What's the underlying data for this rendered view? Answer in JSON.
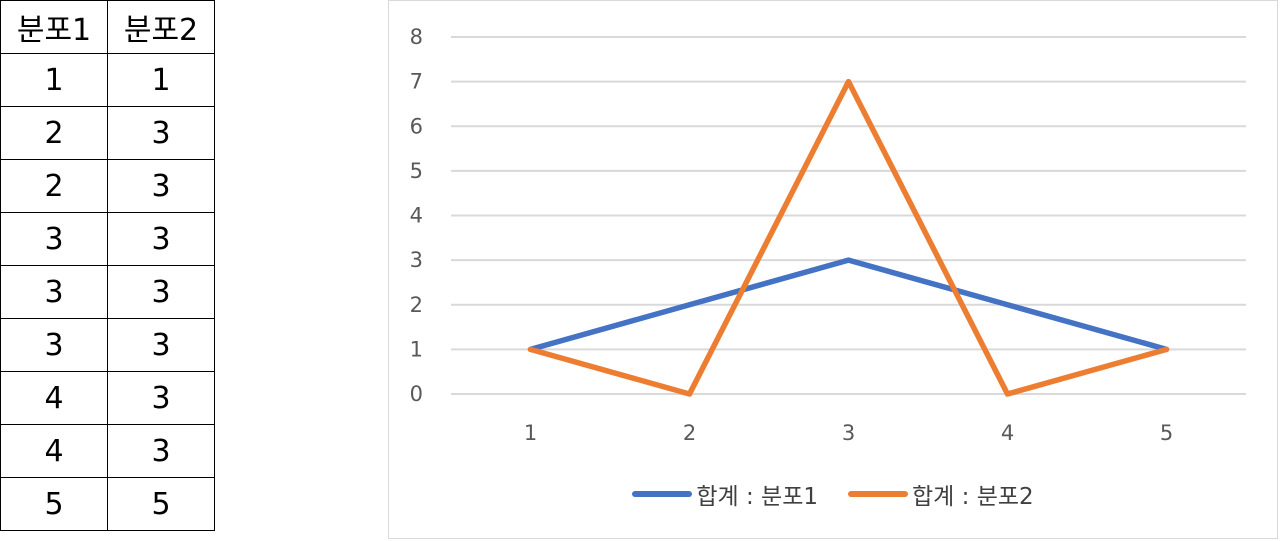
{
  "table": {
    "headers": [
      "분포1",
      "분포2"
    ],
    "rows": [
      [
        "1",
        "1"
      ],
      [
        "2",
        "3"
      ],
      [
        "2",
        "3"
      ],
      [
        "3",
        "3"
      ],
      [
        "3",
        "3"
      ],
      [
        "3",
        "3"
      ],
      [
        "4",
        "3"
      ],
      [
        "4",
        "3"
      ],
      [
        "5",
        "5"
      ]
    ]
  },
  "chart_data": {
    "type": "line",
    "x": [
      1,
      2,
      3,
      4,
      5
    ],
    "series": [
      {
        "name": "합계 : 분포1",
        "values": [
          1,
          2,
          3,
          2,
          1
        ],
        "color": "#4472C4"
      },
      {
        "name": "합계 : 분포2",
        "values": [
          1,
          0,
          7,
          0,
          1
        ],
        "color": "#ED7D31"
      }
    ],
    "xlabel": "",
    "ylabel": "",
    "ylim": [
      0,
      8
    ],
    "yticks": [
      0,
      1,
      2,
      3,
      4,
      5,
      6,
      7,
      8
    ],
    "grid": true,
    "legend_position": "bottom"
  }
}
